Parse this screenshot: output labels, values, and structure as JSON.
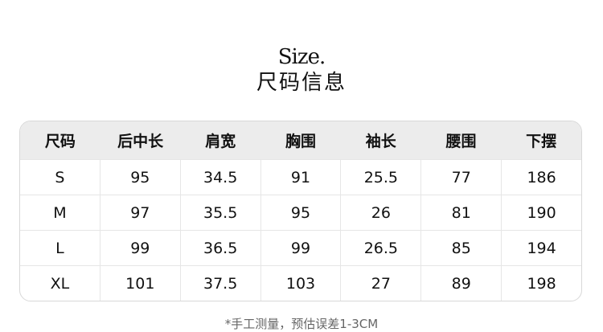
{
  "title_en": "Size.",
  "title_cn": "尺码信息",
  "table": {
    "headers": [
      "尺码",
      "后中长",
      "肩宽",
      "胸围",
      "袖长",
      "腰围",
      "下摆"
    ],
    "rows": [
      [
        "S",
        "95",
        "34.5",
        "91",
        "25.5",
        "77",
        "186"
      ],
      [
        "M",
        "97",
        "35.5",
        "95",
        "26",
        "81",
        "190"
      ],
      [
        "L",
        "99",
        "36.5",
        "99",
        "26.5",
        "85",
        "194"
      ],
      [
        "XL",
        "101",
        "37.5",
        "103",
        "27",
        "89",
        "198"
      ]
    ]
  },
  "note": "*手工测量，预估误差1-3CM"
}
